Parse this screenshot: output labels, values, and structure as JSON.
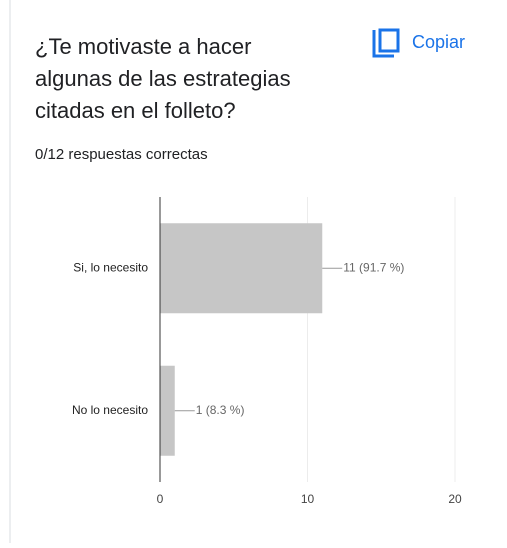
{
  "header": {
    "title_lines": [
      "¿Te motivaste a hacer",
      "algunas de las estrategias",
      "citadas en el folleto?"
    ],
    "copy": "Copiar",
    "subtitle": "0/12 respuestas correctas"
  },
  "chart_data": {
    "type": "hbar",
    "categories": [
      "Si, lo necesito",
      "No lo necesito"
    ],
    "values": [
      11,
      1
    ],
    "value_labels": [
      "11 (91.7 %)",
      "1 (8.3 %)"
    ],
    "color": "#c6c6c6",
    "xlim": [
      0,
      20
    ],
    "xticks": [
      0,
      10,
      20
    ],
    "grid": true
  }
}
